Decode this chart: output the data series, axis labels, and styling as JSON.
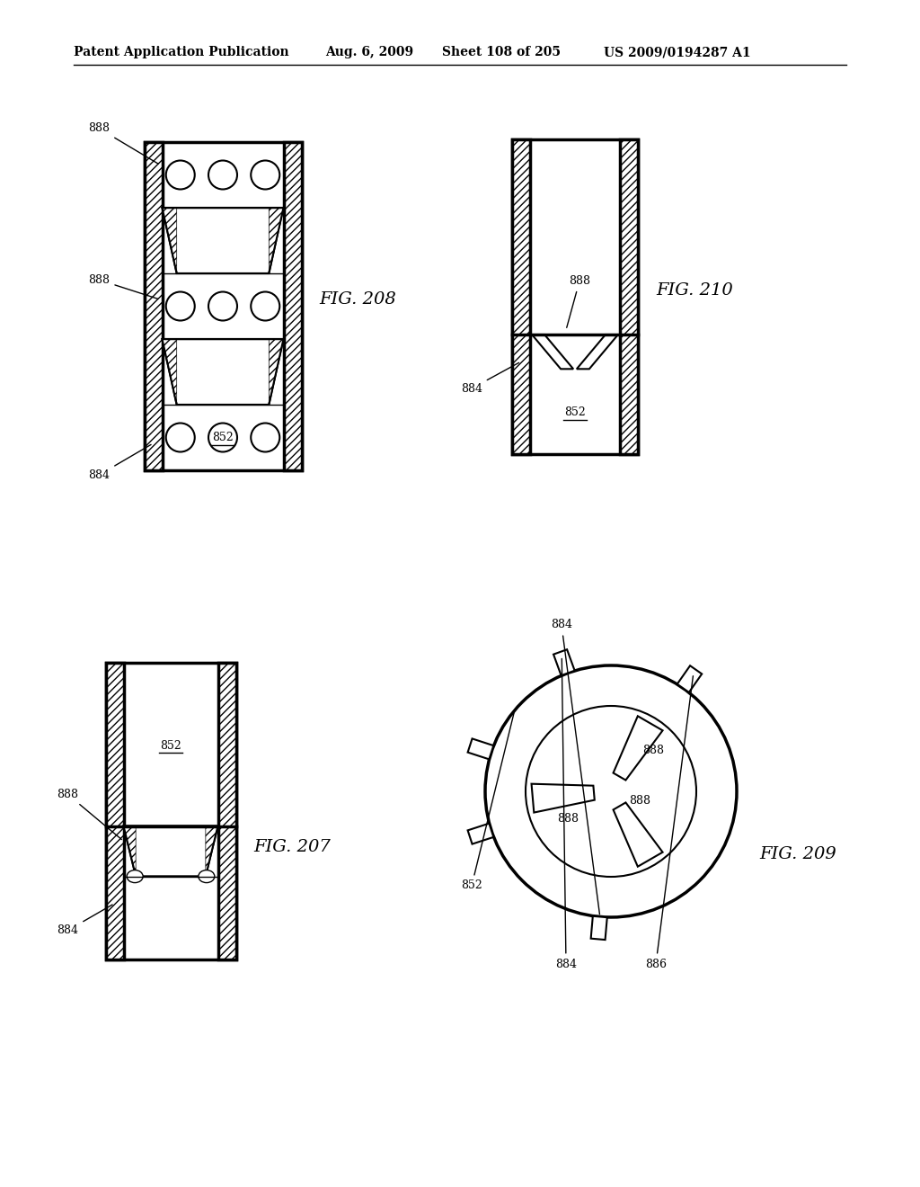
{
  "title_left": "Patent Application Publication",
  "title_mid": "Aug. 6, 2009",
  "title_sheet": "Sheet 108 of 205",
  "title_patent": "US 2009/0194287 A1",
  "fig208_label": "FIG. 208",
  "fig207_label": "FIG. 207",
  "fig210_label": "FIG. 210",
  "fig209_label": "FIG. 209",
  "bg_color": "#ffffff",
  "line_color": "#000000"
}
